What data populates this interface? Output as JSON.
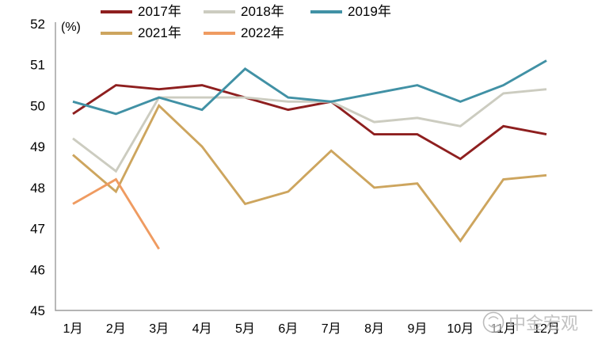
{
  "chart_data": {
    "type": "line",
    "title": "",
    "xlabel": "",
    "ylabel": "(%)",
    "ylim": [
      45,
      52
    ],
    "y_ticks": [
      45,
      46,
      47,
      48,
      49,
      50,
      51,
      52
    ],
    "grid": false,
    "legend_position": "top",
    "categories": [
      "1月",
      "2月",
      "3月",
      "4月",
      "5月",
      "6月",
      "7月",
      "8月",
      "9月",
      "10月",
      "11月",
      "12月"
    ],
    "series": [
      {
        "name": "2017年",
        "color": "#8e1f1f",
        "values": [
          49.8,
          50.5,
          50.4,
          50.5,
          50.2,
          49.9,
          50.1,
          49.3,
          49.3,
          48.7,
          49.5,
          49.3
        ]
      },
      {
        "name": "2018年",
        "color": "#ccccc0",
        "values": [
          49.2,
          48.4,
          50.2,
          50.2,
          50.2,
          50.1,
          50.1,
          49.6,
          49.7,
          49.5,
          50.3,
          50.4
        ]
      },
      {
        "name": "2019年",
        "color": "#4191a5",
        "values": [
          50.1,
          49.8,
          50.2,
          49.9,
          50.9,
          50.2,
          50.1,
          50.3,
          50.5,
          50.1,
          50.5,
          51.1
        ]
      },
      {
        "name": "2021年",
        "color": "#cda55e",
        "values": [
          48.8,
          47.9,
          50.0,
          49.0,
          47.6,
          47.9,
          48.9,
          48.0,
          48.1,
          46.7,
          48.2,
          48.3
        ]
      },
      {
        "name": "2022年",
        "color": "#ef9b61",
        "values": [
          47.6,
          48.2,
          46.5,
          null,
          null,
          null,
          null,
          null,
          null,
          null,
          null,
          null
        ]
      }
    ]
  },
  "watermark": {
    "text": "中金宏观"
  }
}
